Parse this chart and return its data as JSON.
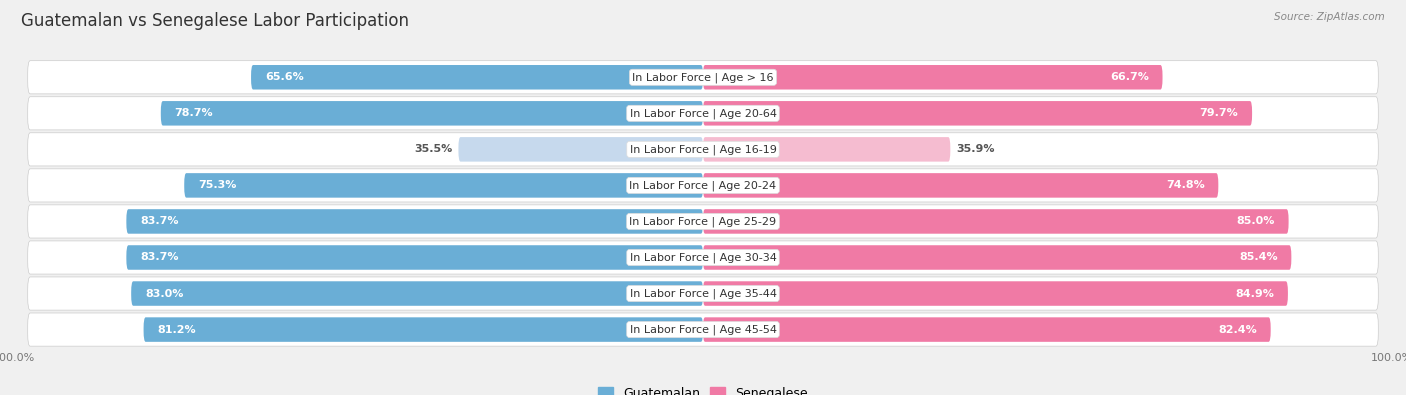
{
  "title": "Guatemalan vs Senegalese Labor Participation",
  "source": "Source: ZipAtlas.com",
  "categories": [
    "In Labor Force | Age > 16",
    "In Labor Force | Age 20-64",
    "In Labor Force | Age 16-19",
    "In Labor Force | Age 20-24",
    "In Labor Force | Age 25-29",
    "In Labor Force | Age 30-34",
    "In Labor Force | Age 35-44",
    "In Labor Force | Age 45-54"
  ],
  "guatemalan_values": [
    65.6,
    78.7,
    35.5,
    75.3,
    83.7,
    83.7,
    83.0,
    81.2
  ],
  "senegalese_values": [
    66.7,
    79.7,
    35.9,
    74.8,
    85.0,
    85.4,
    84.9,
    82.4
  ],
  "guatemalan_color": "#6aaed6",
  "guatemalan_color_light": "#c6d9ed",
  "senegalese_color": "#f07aa5",
  "senegalese_color_light": "#f5bcd0",
  "bar_height": 0.68,
  "background_color": "#f0f0f0",
  "row_bg": "#e8e8e8",
  "title_fontsize": 12,
  "label_fontsize": 8,
  "value_fontsize": 8,
  "legend_fontsize": 9,
  "max_value": 100.0
}
